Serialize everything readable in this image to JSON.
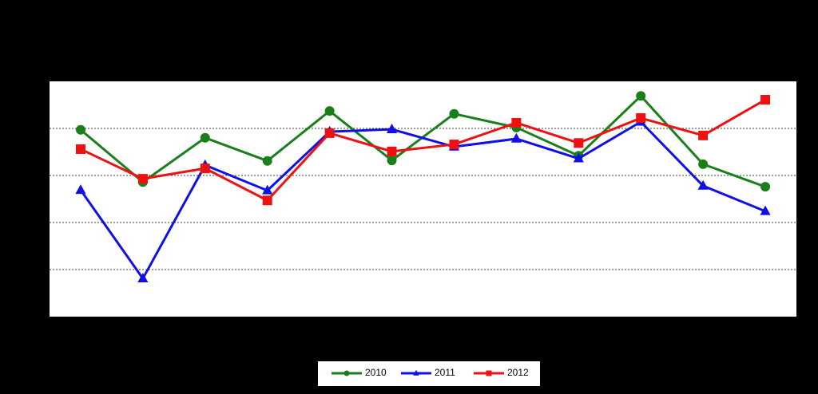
{
  "chart_data": {
    "type": "line",
    "categories": [
      null,
      null,
      null,
      null,
      null,
      null,
      null,
      null,
      null,
      null,
      null,
      null
    ],
    "series": [
      {
        "name": "2010",
        "color": "#1a7f1a",
        "marker": "circle",
        "values": [
          3.97,
          2.86,
          3.8,
          3.31,
          4.37,
          3.32,
          4.31,
          4.02,
          3.42,
          4.69,
          3.24,
          2.76
        ]
      },
      {
        "name": "2011",
        "color": "#1010e6",
        "marker": "triangle",
        "values": [
          2.69,
          0.81,
          3.22,
          2.68,
          3.93,
          3.98,
          3.61,
          3.78,
          3.36,
          4.14,
          2.78,
          2.24
        ]
      },
      {
        "name": "2012",
        "color": "#ee1111",
        "marker": "square",
        "values": [
          3.56,
          2.93,
          3.15,
          2.47,
          3.9,
          3.51,
          3.66,
          4.12,
          3.69,
          4.22,
          3.85,
          4.61
        ]
      }
    ],
    "ylim": [
      0,
      5
    ],
    "yticks": [
      1,
      2,
      3,
      4
    ],
    "grid": true,
    "legend": "bottom"
  }
}
